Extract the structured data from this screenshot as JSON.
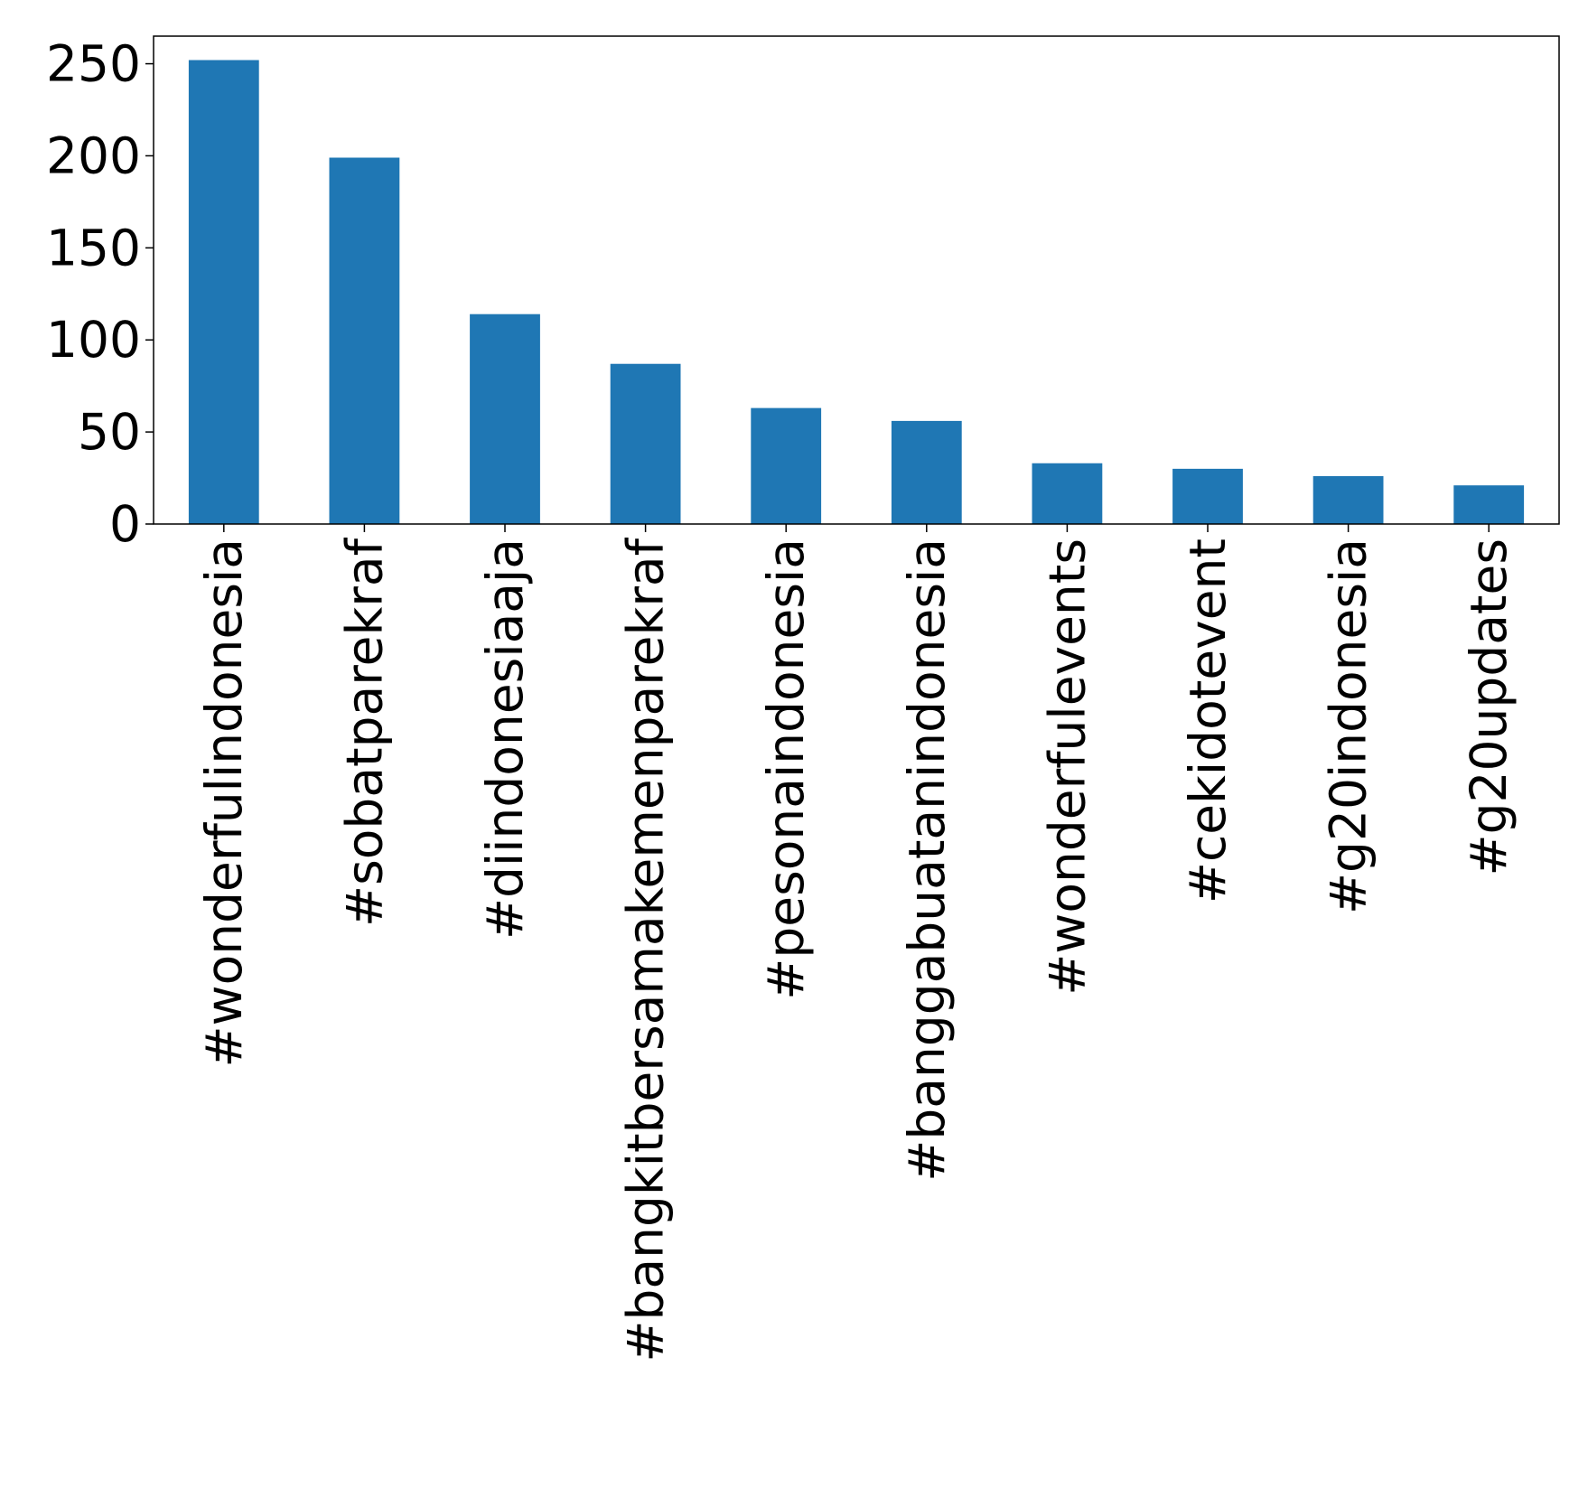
{
  "colors": {
    "bar": "#1f77b4",
    "axis": "#000000",
    "background": "#ffffff"
  },
  "chart_data": {
    "type": "bar",
    "title": "",
    "xlabel": "",
    "ylabel": "",
    "categories": [
      "#wonderfulindonesia",
      "#sobatparekraf",
      "#diindonesiaaja",
      "#bangkitbersamakemenparekraf",
      "#pesonaindonesia",
      "#banggabuatanindonesia",
      "#wonderfulevents",
      "#cekidotevent",
      "#g20indonesia",
      "#g20updates"
    ],
    "values": [
      252,
      199,
      114,
      87,
      63,
      56,
      33,
      30,
      26,
      21
    ],
    "ylim": [
      0,
      265
    ],
    "yticks": [
      0,
      50,
      100,
      150,
      200,
      250
    ],
    "grid": false,
    "legend": "none"
  }
}
